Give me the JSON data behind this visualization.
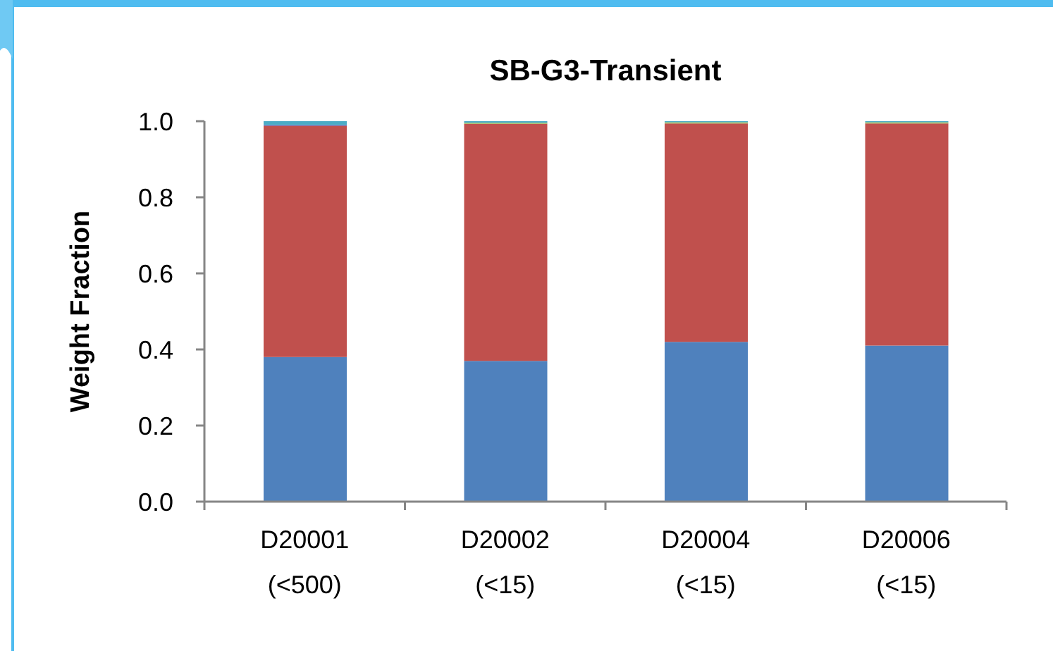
{
  "chart_data": {
    "type": "bar",
    "title": "SB-G3-Transient",
    "ylabel": "Weight Fraction",
    "categories": [
      "D20001\n(<500)",
      "D20002\n(<15)",
      "D20004\n(<15)",
      "D20006\n(<15)"
    ],
    "series": [
      {
        "color": "#4f81bd",
        "values": [
          0.38,
          0.37,
          0.42,
          0.41
        ]
      },
      {
        "color": "#c0504d",
        "values": [
          0.607,
          0.623,
          0.574,
          0.584
        ]
      },
      {
        "color": "#9bbb59",
        "values": [
          0,
          0.003,
          0.003,
          0.003
        ]
      },
      {
        "color": "#8064a2",
        "values": [
          0.003,
          0,
          0,
          0
        ]
      },
      {
        "color": "#4bacc6",
        "values": [
          0.01,
          0.004,
          0.003,
          0.003
        ]
      }
    ],
    "stacked": true,
    "ylim": [
      0,
      1
    ],
    "yticks": [
      {
        "value": 0,
        "label": "0.0"
      },
      {
        "value": 0.2,
        "label": "0.2"
      },
      {
        "value": 0.4,
        "label": "0.4"
      },
      {
        "value": 0.6,
        "label": "0.6"
      },
      {
        "value": 0.8,
        "label": "0.8"
      },
      {
        "value": 1,
        "label": "1.0"
      }
    ]
  }
}
